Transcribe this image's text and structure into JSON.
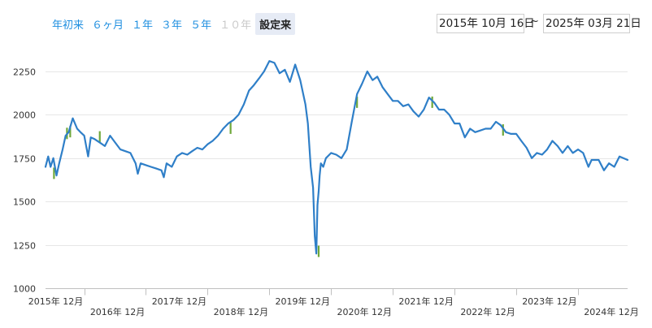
{
  "range_selector": {
    "buttons": [
      {
        "label": "年初来",
        "state": "normal"
      },
      {
        "label": "６ヶ月",
        "state": "normal"
      },
      {
        "label": "１年",
        "state": "normal"
      },
      {
        "label": "３年",
        "state": "normal"
      },
      {
        "label": "５年",
        "state": "normal"
      },
      {
        "label": "１０年",
        "state": "disabled"
      },
      {
        "label": "設定来",
        "state": "selected"
      }
    ],
    "from_date": "2015年 10月 16日",
    "separator": "~",
    "to_date": "2025年 03月 21日"
  },
  "colors": {
    "line": "#2f7fc8",
    "low_highlight": "#6fa83a",
    "grid": "#e6e6e6",
    "axis": "#c0c0c0"
  },
  "chart_data": {
    "type": "line",
    "title": "",
    "xlabel": "",
    "ylabel": "",
    "ylim": [
      1000,
      2400
    ],
    "yticks": [
      1000,
      1250,
      1500,
      1750,
      2000,
      2250
    ],
    "x_range": [
      "2015-10-16",
      "2025-03-21"
    ],
    "x_tick_labels": [
      {
        "date": "2015-12",
        "label": "2015年 12月"
      },
      {
        "date": "2016-12",
        "label": "2016年 12月"
      },
      {
        "date": "2017-12",
        "label": "2017年 12月"
      },
      {
        "date": "2018-12",
        "label": "2018年 12月"
      },
      {
        "date": "2019-12",
        "label": "2019年 12月"
      },
      {
        "date": "2020-12",
        "label": "2020年 12月"
      },
      {
        "date": "2021-12",
        "label": "2021年 12月"
      },
      {
        "date": "2022-12",
        "label": "2022年 12月"
      },
      {
        "date": "2023-12",
        "label": "2023年 12月"
      },
      {
        "date": "2024-12",
        "label": "2024年 12月"
      }
    ],
    "grid": true,
    "legend": "none",
    "series": [
      {
        "x": [
          "2015-10-16",
          "2015-11-01",
          "2015-11-15",
          "2015-12-01",
          "2015-12-20",
          "2016-01-05",
          "2016-01-25",
          "2016-02-12",
          "2016-03-01",
          "2016-03-25",
          "2016-04-20",
          "2016-05-10",
          "2016-06-01",
          "2016-06-24",
          "2016-07-10",
          "2016-08-01",
          "2016-09-01",
          "2016-10-01",
          "2016-11-01",
          "2016-12-01",
          "2017-01-01",
          "2017-02-01",
          "2017-03-01",
          "2017-04-01",
          "2017-04-14",
          "2017-05-01",
          "2017-06-01",
          "2017-07-01",
          "2017-08-01",
          "2017-09-01",
          "2017-09-15",
          "2017-10-01",
          "2017-11-01",
          "2017-12-01",
          "2018-01-01",
          "2018-02-01",
          "2018-03-01",
          "2018-04-01",
          "2018-05-01",
          "2018-06-01",
          "2018-07-01",
          "2018-08-01",
          "2018-09-01",
          "2018-10-01",
          "2018-11-01",
          "2018-12-01",
          "2019-01-01",
          "2019-02-01",
          "2019-03-01",
          "2019-04-01",
          "2019-05-01",
          "2019-06-01",
          "2019-07-01",
          "2019-08-01",
          "2019-09-01",
          "2019-10-01",
          "2019-11-01",
          "2019-12-01",
          "2020-01-01",
          "2020-01-15",
          "2020-02-01",
          "2020-02-15",
          "2020-02-25",
          "2020-03-05",
          "2020-03-12",
          "2020-03-19",
          "2020-03-25",
          "2020-04-01",
          "2020-04-15",
          "2020-05-01",
          "2020-06-01",
          "2020-07-01",
          "2020-08-01",
          "2020-09-01",
          "2020-10-01",
          "2020-11-01",
          "2020-12-01",
          "2021-01-01",
          "2021-02-01",
          "2021-03-01",
          "2021-04-01",
          "2021-05-01",
          "2021-06-01",
          "2021-07-01",
          "2021-08-01",
          "2021-09-01",
          "2021-10-01",
          "2021-11-01",
          "2021-12-01",
          "2022-01-01",
          "2022-02-01",
          "2022-03-01",
          "2022-04-01",
          "2022-05-01",
          "2022-06-01",
          "2022-07-01",
          "2022-08-01",
          "2022-09-01",
          "2022-10-01",
          "2022-11-01",
          "2022-12-01",
          "2023-01-01",
          "2023-02-01",
          "2023-03-01",
          "2023-04-01",
          "2023-05-01",
          "2023-06-01",
          "2023-07-01",
          "2023-08-01",
          "2023-09-01",
          "2023-10-01",
          "2023-11-01",
          "2023-12-01",
          "2024-01-01",
          "2024-02-01",
          "2024-03-01",
          "2024-04-01",
          "2024-05-01",
          "2024-06-01",
          "2024-07-01",
          "2024-08-01",
          "2024-08-20",
          "2024-09-01",
          "2024-10-01",
          "2024-11-01",
          "2024-12-01",
          "2025-01-01",
          "2025-02-01",
          "2025-03-21"
        ],
        "values": [
          1700,
          1760,
          1700,
          1750,
          1650,
          1720,
          1800,
          1880,
          1900,
          1980,
          1920,
          1900,
          1880,
          1760,
          1870,
          1860,
          1840,
          1820,
          1880,
          1840,
          1800,
          1790,
          1780,
          1720,
          1660,
          1720,
          1710,
          1700,
          1690,
          1680,
          1640,
          1720,
          1700,
          1760,
          1780,
          1770,
          1790,
          1810,
          1800,
          1830,
          1850,
          1880,
          1920,
          1950,
          1970,
          2000,
          2060,
          2140,
          2170,
          2210,
          2250,
          2310,
          2300,
          2240,
          2260,
          2190,
          2290,
          2200,
          2060,
          1950,
          1700,
          1580,
          1300,
          1200,
          1480,
          1560,
          1650,
          1720,
          1700,
          1750,
          1780,
          1770,
          1750,
          1800,
          1960,
          2120,
          2180,
          2250,
          2200,
          2220,
          2160,
          2120,
          2080,
          2080,
          2050,
          2060,
          2020,
          1990,
          2030,
          2100,
          2070,
          2030,
          2030,
          2000,
          1950,
          1950,
          1870,
          1920,
          1900,
          1910,
          1920,
          1920,
          1960,
          1940,
          1900,
          1890,
          1890,
          1850,
          1810,
          1750,
          1780,
          1770,
          1800,
          1850,
          1820,
          1780,
          1820,
          1780,
          1800,
          1780,
          1700,
          1740,
          1740,
          1740,
          1680,
          1720,
          1700,
          1760,
          1740
        ],
        "highlight_lows": [
          {
            "date": "2015-12-05",
            "value": 1630
          },
          {
            "date": "2016-02-20",
            "value": 1860
          },
          {
            "date": "2016-03-10",
            "value": 1870
          },
          {
            "date": "2016-09-01",
            "value": 1840
          },
          {
            "date": "2018-10-15",
            "value": 1890
          },
          {
            "date": "2020-03-19",
            "value": 1180
          },
          {
            "date": "2020-11-01",
            "value": 2040
          },
          {
            "date": "2022-01-20",
            "value": 2040
          },
          {
            "date": "2023-03-15",
            "value": 1880
          }
        ]
      }
    ]
  }
}
